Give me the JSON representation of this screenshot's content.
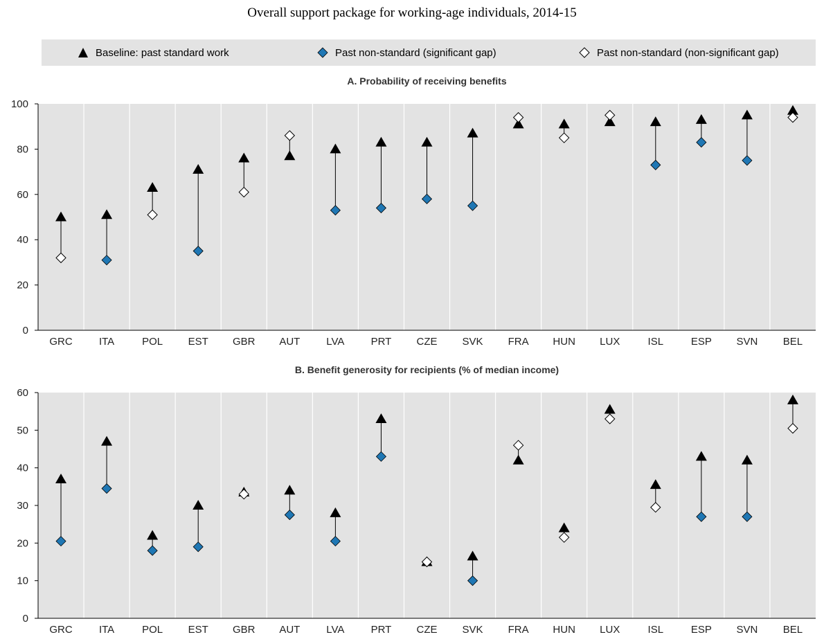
{
  "title": "Overall support package for working-age individuals, 2014-15",
  "legend": {
    "baseline": "Baseline: past standard work",
    "sig": "Past non-standard (significant gap)",
    "nonsig": "Past non-standard (non-significant gap)"
  },
  "colors": {
    "plot_bg": "#e3e3e3",
    "sig_fill": "#1f77b4",
    "marker": "#000000"
  },
  "chart_data": [
    {
      "type": "scatter",
      "title": "A. Probability of receiving benefits",
      "categories": [
        "GRC",
        "ITA",
        "POL",
        "EST",
        "GBR",
        "AUT",
        "LVA",
        "PRT",
        "CZE",
        "SVK",
        "FRA",
        "HUN",
        "LUX",
        "ISL",
        "ESP",
        "SVN",
        "BEL"
      ],
      "ylim": [
        0,
        100
      ],
      "yticks": [
        0,
        20,
        40,
        60,
        80,
        100
      ],
      "grid": "vertical",
      "series": [
        {
          "name": "Baseline: past standard work",
          "values": [
            50,
            51,
            63,
            71,
            76,
            77,
            80,
            83,
            83,
            87,
            91,
            91,
            92,
            92,
            93,
            95,
            97
          ]
        },
        {
          "name": "Past non-standard",
          "values": [
            32,
            31,
            51,
            35,
            61,
            86,
            53,
            54,
            58,
            55,
            94,
            85,
            95,
            73,
            83,
            75,
            94
          ],
          "significant": [
            false,
            true,
            false,
            true,
            false,
            false,
            true,
            true,
            true,
            true,
            false,
            false,
            false,
            true,
            true,
            true,
            false
          ]
        }
      ]
    },
    {
      "type": "scatter",
      "title": "B. Benefit generosity for recipients (% of median income)",
      "categories": [
        "GRC",
        "ITA",
        "POL",
        "EST",
        "GBR",
        "AUT",
        "LVA",
        "PRT",
        "CZE",
        "SVK",
        "FRA",
        "HUN",
        "LUX",
        "ISL",
        "ESP",
        "SVN",
        "BEL"
      ],
      "ylim": [
        0,
        60
      ],
      "yticks": [
        0,
        10,
        20,
        30,
        40,
        50,
        60
      ],
      "grid": "vertical",
      "series": [
        {
          "name": "Baseline: past standard work",
          "values": [
            37,
            47,
            22,
            30,
            33.5,
            34,
            28,
            53,
            15,
            16.5,
            42,
            24,
            55.5,
            35.5,
            43,
            42,
            58
          ]
        },
        {
          "name": "Past non-standard",
          "values": [
            20.5,
            34.5,
            18,
            19,
            33,
            27.5,
            20.5,
            43,
            15,
            10,
            46,
            21.5,
            53,
            29.5,
            27,
            27,
            50.5
          ],
          "significant": [
            true,
            true,
            true,
            true,
            false,
            true,
            true,
            true,
            false,
            true,
            false,
            false,
            false,
            false,
            true,
            true,
            false
          ]
        }
      ]
    }
  ]
}
